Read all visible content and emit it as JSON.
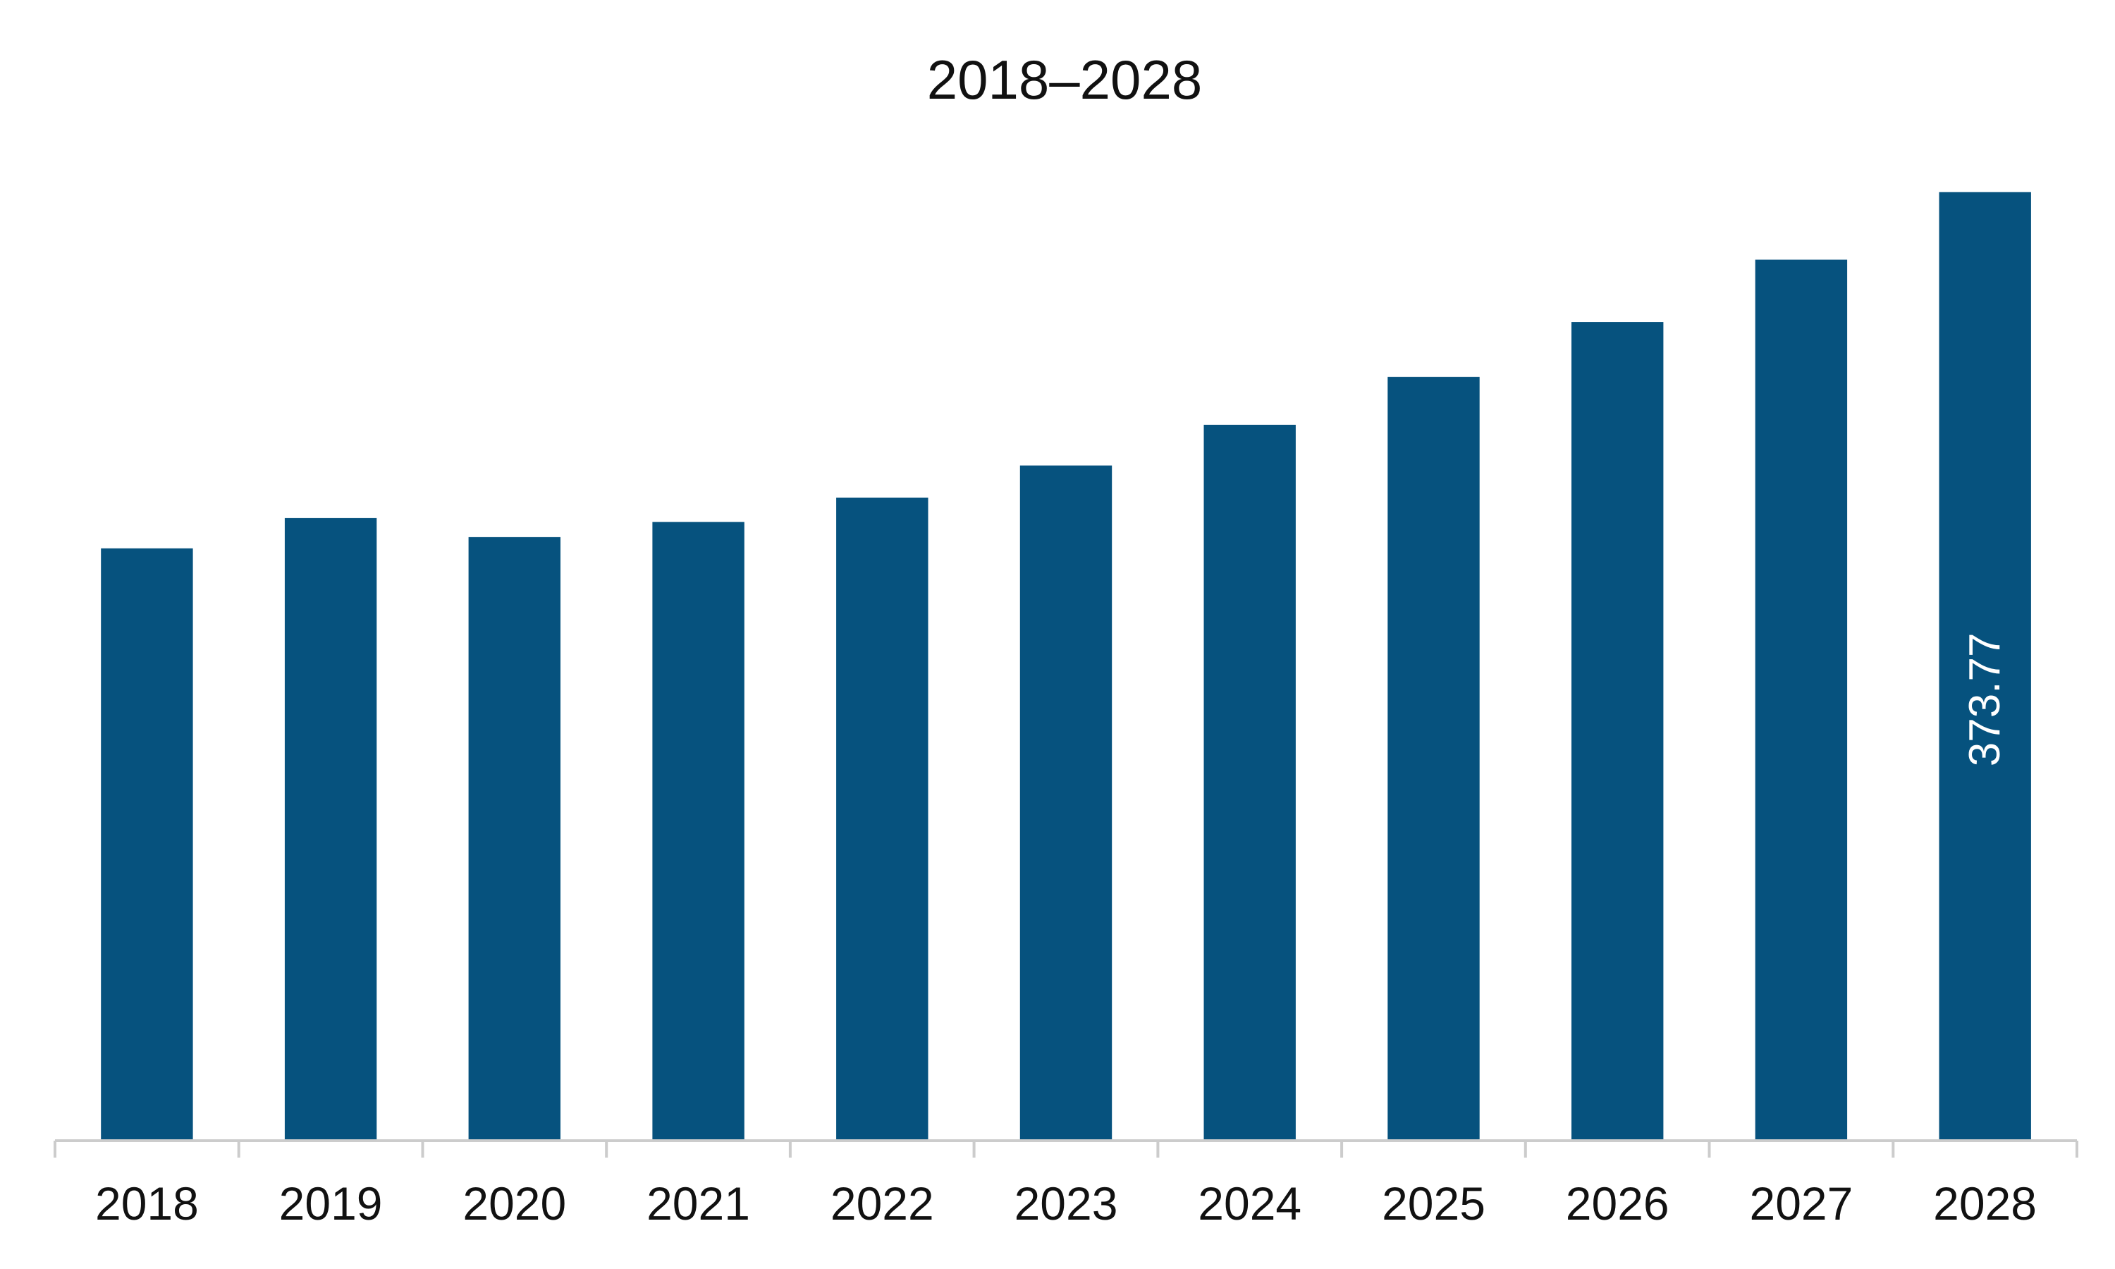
{
  "chart_data": {
    "type": "bar",
    "title": "2018–2028",
    "xlabel": "",
    "ylabel": "",
    "categories": [
      "2018",
      "2019",
      "2020",
      "2021",
      "2022",
      "2023",
      "2024",
      "2025",
      "2026",
      "2027",
      "2028"
    ],
    "values": [
      233.4,
      245.3,
      237.8,
      243.8,
      253.4,
      266.0,
      282.0,
      300.9,
      322.5,
      347.1,
      373.77
    ],
    "data_labels": [
      {
        "category": "2028",
        "text": "373.77"
      }
    ],
    "ylim": [
      0,
      400
    ],
    "grid": false,
    "legend": "none",
    "colors": {
      "bar": "#06527E",
      "axis": "#CCCCCC",
      "text": "#111111",
      "data_label": "#FFFFFF"
    }
  }
}
